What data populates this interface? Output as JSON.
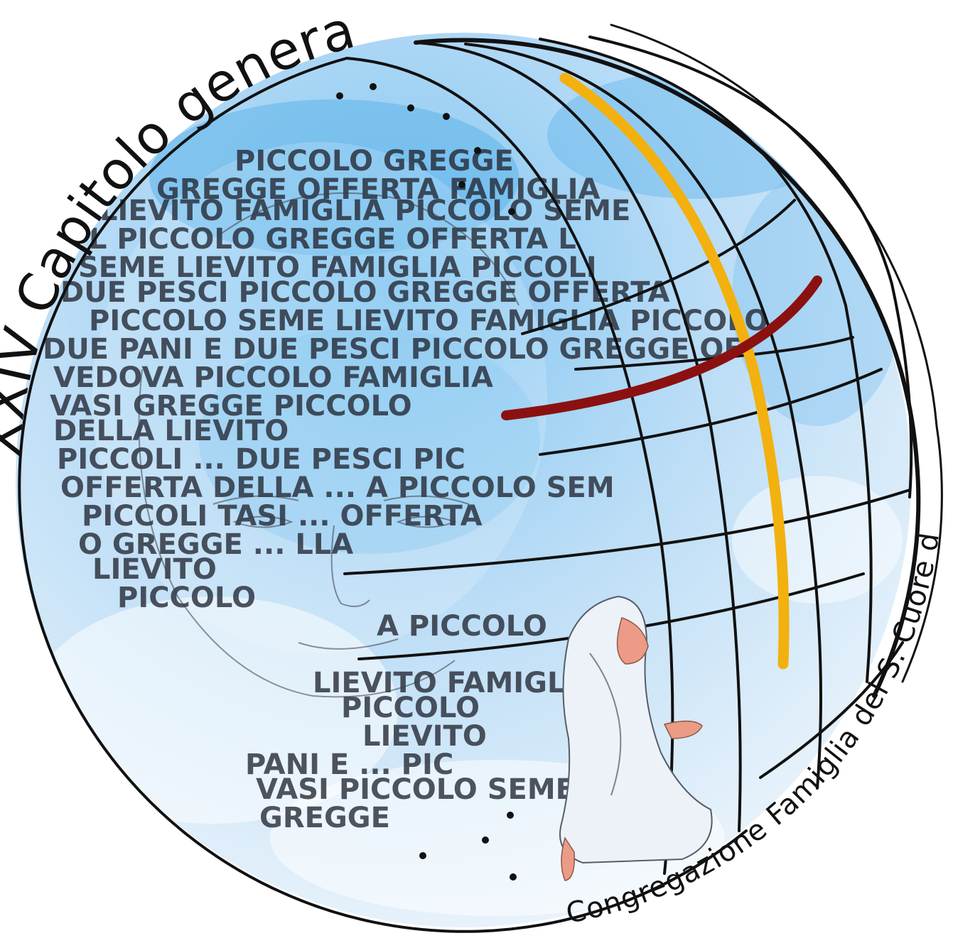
{
  "logo": {
    "title_top": "XXIV Capitolo generale",
    "title_bottom": "Congregazione Famiglia del S. Cuore di Gesù",
    "portrait_text_lines": [
      "PICCOLO GREGGE",
      "GREGGE OFFERTA FAMIGLIA",
      "LIEVITO FAMIGLIA PICCOLO SEME",
      "L PICCOLO GREGGE OFFERTA L",
      "SEME LIEVITO FAMIGLIA PICCOLI",
      "DUE PESCI PICCOLO GREGGE OFFERTA",
      "PICCOLO SEME LIEVITO FAMIGLIA PICCOLO",
      "DUE PANI E DUE PESCI PICCOLO GREGGE OF",
      "VEDOVA PICCOLO FAMIGLIA",
      "VASI GREGGE PICCOLO",
      "DELLA LIEVITO",
      "PICCOLI ... DUE PESCI PIC",
      "OFFERTA DELLA ... A PICCOLO SEM",
      "PICCOLI TASI ... OFFERTA",
      "O GREGGE ... LLA",
      "LIEVITO",
      "PICCOLO",
      "A PICCOLO",
      "LIEVITO FAMIGLIA",
      "PICCOLO",
      "LIEVITO",
      "PANI E ... PIC",
      "VASI PICCOLO SEME",
      "GREGGE"
    ],
    "colors": {
      "outline": "#111111",
      "accent_yellow": "#f2b10f",
      "accent_red": "#8b1111",
      "sky_light": "#eaf3fb",
      "sky_mid": "#b4d8f5",
      "sky_deep": "#5fb4ea",
      "figure_skin": "#eb9b86",
      "figure_robe": "#edf2f8"
    }
  }
}
